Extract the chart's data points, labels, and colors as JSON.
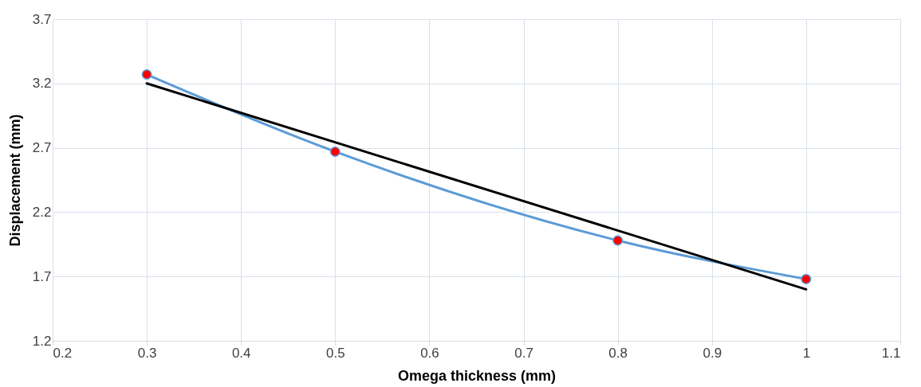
{
  "chart_data": {
    "type": "line",
    "xlabel": "Omega thickness (mm)",
    "ylabel": "Displacement (mm)",
    "xlim": [
      0.2,
      1.1
    ],
    "xticks": [
      0.2,
      0.3,
      0.4,
      0.5,
      0.6,
      0.7,
      0.8,
      0.9,
      1,
      1.1
    ],
    "ylim": [
      1.2,
      3.7
    ],
    "yticks": [
      1.2,
      1.7,
      2.2,
      2.7,
      3.2,
      3.7
    ],
    "grid": true,
    "legend": false,
    "series": [
      {
        "type": "line",
        "color": "#5b9bd5",
        "marker": "circle",
        "colors": [
          "#ff0000",
          "#ff0000",
          "#ff0000",
          "#ff0000"
        ],
        "x": [
          0.3,
          0.5,
          0.8,
          1
        ],
        "values": [
          3.27,
          2.67,
          1.98,
          1.68
        ]
      },
      {
        "type": "line",
        "color": "#000000",
        "marker": "none",
        "x": [
          0.3,
          1
        ],
        "values": [
          3.2,
          1.6
        ]
      }
    ]
  }
}
